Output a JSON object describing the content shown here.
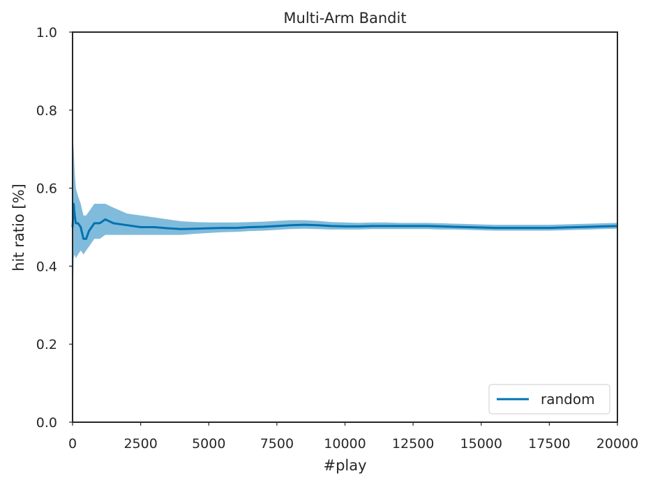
{
  "chart_data": {
    "type": "line",
    "title": "Multi-Arm Bandit",
    "xlabel": "#play",
    "ylabel": "hit ratio [%]",
    "xlim": [
      0,
      20000
    ],
    "ylim": [
      0.0,
      1.0
    ],
    "xticks": [
      0,
      2500,
      5000,
      7500,
      10000,
      12500,
      15000,
      17500,
      20000
    ],
    "yticks": [
      0.0,
      0.2,
      0.4,
      0.6,
      0.8,
      1.0
    ],
    "xtick_labels": [
      "0",
      "2500",
      "5000",
      "7500",
      "10000",
      "12500",
      "15000",
      "17500",
      "20000"
    ],
    "ytick_labels": [
      "0.0",
      "0.2",
      "0.4",
      "0.6",
      "0.8",
      "1.0"
    ],
    "grid": false,
    "legend_position": "bottom-right",
    "series": [
      {
        "name": "random",
        "color": "#0072b2",
        "band_color": "#7ab7d9",
        "x": [
          1,
          40,
          80,
          120,
          200,
          300,
          400,
          500,
          600,
          700,
          800,
          1000,
          1200,
          1500,
          2000,
          2500,
          3000,
          3500,
          4000,
          4500,
          5000,
          5500,
          6000,
          6500,
          7000,
          7500,
          8000,
          8500,
          9000,
          9500,
          10000,
          10500,
          11000,
          11500,
          12000,
          12500,
          13000,
          13500,
          14000,
          14500,
          15000,
          15500,
          16000,
          16500,
          17000,
          17500,
          18000,
          18500,
          19000,
          19500,
          20000
        ],
        "y": [
          0.5,
          0.56,
          0.53,
          0.51,
          0.51,
          0.5,
          0.47,
          0.47,
          0.49,
          0.5,
          0.51,
          0.51,
          0.52,
          0.51,
          0.505,
          0.5,
          0.5,
          0.497,
          0.495,
          0.496,
          0.497,
          0.498,
          0.498,
          0.5,
          0.501,
          0.503,
          0.505,
          0.506,
          0.505,
          0.503,
          0.502,
          0.502,
          0.503,
          0.503,
          0.503,
          0.503,
          0.503,
          0.502,
          0.501,
          0.5,
          0.499,
          0.498,
          0.498,
          0.498,
          0.498,
          0.498,
          0.499,
          0.5,
          0.501,
          0.502,
          0.503
        ],
        "lower": [
          0.25,
          0.42,
          0.43,
          0.42,
          0.43,
          0.44,
          0.43,
          0.44,
          0.45,
          0.46,
          0.47,
          0.47,
          0.48,
          0.48,
          0.48,
          0.48,
          0.48,
          0.48,
          0.48,
          0.483,
          0.485,
          0.487,
          0.488,
          0.49,
          0.491,
          0.493,
          0.495,
          0.496,
          0.495,
          0.494,
          0.494,
          0.494,
          0.495,
          0.495,
          0.495,
          0.495,
          0.495,
          0.494,
          0.494,
          0.493,
          0.492,
          0.491,
          0.491,
          0.491,
          0.491,
          0.491,
          0.492,
          0.493,
          0.494,
          0.495,
          0.496
        ],
        "upper": [
          0.75,
          0.7,
          0.64,
          0.6,
          0.58,
          0.56,
          0.53,
          0.53,
          0.54,
          0.55,
          0.56,
          0.56,
          0.56,
          0.55,
          0.535,
          0.53,
          0.525,
          0.52,
          0.515,
          0.513,
          0.512,
          0.512,
          0.512,
          0.513,
          0.514,
          0.516,
          0.518,
          0.518,
          0.516,
          0.513,
          0.512,
          0.511,
          0.512,
          0.512,
          0.511,
          0.511,
          0.511,
          0.51,
          0.509,
          0.508,
          0.507,
          0.506,
          0.506,
          0.506,
          0.506,
          0.506,
          0.507,
          0.508,
          0.509,
          0.51,
          0.511
        ]
      }
    ]
  }
}
